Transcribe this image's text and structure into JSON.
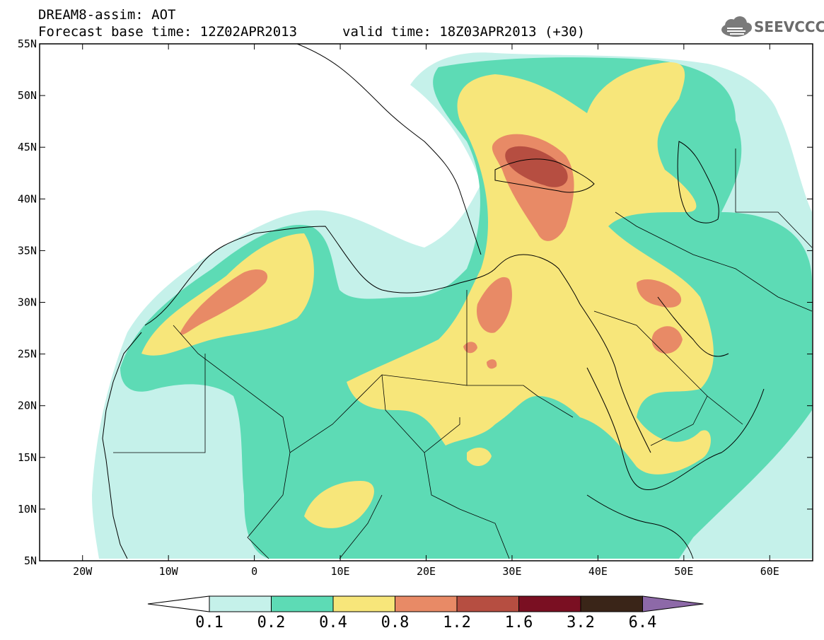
{
  "header": {
    "line1": "DREAM8-assim: AOT",
    "line2": "Forecast base time: 12Z02APR2013",
    "line3": "valid time: 18Z03APR2013 (+30)"
  },
  "logo": {
    "text": "SEEVCCC",
    "icon": "cloud-logo-icon"
  },
  "map": {
    "variable": "AOT",
    "lon_range": [
      -25,
      65
    ],
    "lat_range": [
      5,
      55
    ],
    "lat_labels": [
      "55N",
      "50N",
      "45N",
      "40N",
      "35N",
      "30N",
      "25N",
      "20N",
      "15N",
      "10N",
      "5N"
    ],
    "lon_labels": [
      "20W",
      "10W",
      "0",
      "10E",
      "20E",
      "30E",
      "40E",
      "50E",
      "60E"
    ]
  },
  "colorbar": {
    "levels": [
      "0.1",
      "0.2",
      "0.4",
      "0.8",
      "1.2",
      "1.6",
      "3.2",
      "6.4"
    ],
    "colors": [
      "#ffffff",
      "#c5f1ea",
      "#5ddbb5",
      "#f7e67a",
      "#e88a66",
      "#b64e41",
      "#7a0f22",
      "#3a2518",
      "#8d69a8"
    ]
  }
}
